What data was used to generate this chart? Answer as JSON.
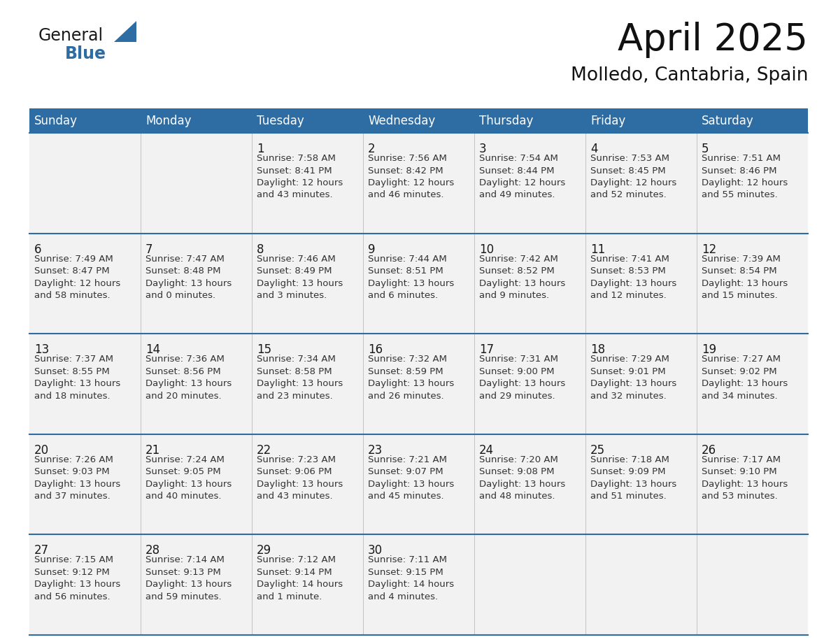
{
  "title": "April 2025",
  "subtitle": "Molledo, Cantabria, Spain",
  "header_bg_color": "#2E6DA4",
  "header_text_color": "#FFFFFF",
  "cell_bg_even": "#EFEFEF",
  "cell_bg_odd": "#F9F9F9",
  "day_number_color": "#1a1a1a",
  "cell_text_color": "#333333",
  "line_color": "#2E6DA4",
  "days_of_week": [
    "Sunday",
    "Monday",
    "Tuesday",
    "Wednesday",
    "Thursday",
    "Friday",
    "Saturday"
  ],
  "weeks": [
    [
      {
        "day": "",
        "info": ""
      },
      {
        "day": "",
        "info": ""
      },
      {
        "day": "1",
        "info": "Sunrise: 7:58 AM\nSunset: 8:41 PM\nDaylight: 12 hours\nand 43 minutes."
      },
      {
        "day": "2",
        "info": "Sunrise: 7:56 AM\nSunset: 8:42 PM\nDaylight: 12 hours\nand 46 minutes."
      },
      {
        "day": "3",
        "info": "Sunrise: 7:54 AM\nSunset: 8:44 PM\nDaylight: 12 hours\nand 49 minutes."
      },
      {
        "day": "4",
        "info": "Sunrise: 7:53 AM\nSunset: 8:45 PM\nDaylight: 12 hours\nand 52 minutes."
      },
      {
        "day": "5",
        "info": "Sunrise: 7:51 AM\nSunset: 8:46 PM\nDaylight: 12 hours\nand 55 minutes."
      }
    ],
    [
      {
        "day": "6",
        "info": "Sunrise: 7:49 AM\nSunset: 8:47 PM\nDaylight: 12 hours\nand 58 minutes."
      },
      {
        "day": "7",
        "info": "Sunrise: 7:47 AM\nSunset: 8:48 PM\nDaylight: 13 hours\nand 0 minutes."
      },
      {
        "day": "8",
        "info": "Sunrise: 7:46 AM\nSunset: 8:49 PM\nDaylight: 13 hours\nand 3 minutes."
      },
      {
        "day": "9",
        "info": "Sunrise: 7:44 AM\nSunset: 8:51 PM\nDaylight: 13 hours\nand 6 minutes."
      },
      {
        "day": "10",
        "info": "Sunrise: 7:42 AM\nSunset: 8:52 PM\nDaylight: 13 hours\nand 9 minutes."
      },
      {
        "day": "11",
        "info": "Sunrise: 7:41 AM\nSunset: 8:53 PM\nDaylight: 13 hours\nand 12 minutes."
      },
      {
        "day": "12",
        "info": "Sunrise: 7:39 AM\nSunset: 8:54 PM\nDaylight: 13 hours\nand 15 minutes."
      }
    ],
    [
      {
        "day": "13",
        "info": "Sunrise: 7:37 AM\nSunset: 8:55 PM\nDaylight: 13 hours\nand 18 minutes."
      },
      {
        "day": "14",
        "info": "Sunrise: 7:36 AM\nSunset: 8:56 PM\nDaylight: 13 hours\nand 20 minutes."
      },
      {
        "day": "15",
        "info": "Sunrise: 7:34 AM\nSunset: 8:58 PM\nDaylight: 13 hours\nand 23 minutes."
      },
      {
        "day": "16",
        "info": "Sunrise: 7:32 AM\nSunset: 8:59 PM\nDaylight: 13 hours\nand 26 minutes."
      },
      {
        "day": "17",
        "info": "Sunrise: 7:31 AM\nSunset: 9:00 PM\nDaylight: 13 hours\nand 29 minutes."
      },
      {
        "day": "18",
        "info": "Sunrise: 7:29 AM\nSunset: 9:01 PM\nDaylight: 13 hours\nand 32 minutes."
      },
      {
        "day": "19",
        "info": "Sunrise: 7:27 AM\nSunset: 9:02 PM\nDaylight: 13 hours\nand 34 minutes."
      }
    ],
    [
      {
        "day": "20",
        "info": "Sunrise: 7:26 AM\nSunset: 9:03 PM\nDaylight: 13 hours\nand 37 minutes."
      },
      {
        "day": "21",
        "info": "Sunrise: 7:24 AM\nSunset: 9:05 PM\nDaylight: 13 hours\nand 40 minutes."
      },
      {
        "day": "22",
        "info": "Sunrise: 7:23 AM\nSunset: 9:06 PM\nDaylight: 13 hours\nand 43 minutes."
      },
      {
        "day": "23",
        "info": "Sunrise: 7:21 AM\nSunset: 9:07 PM\nDaylight: 13 hours\nand 45 minutes."
      },
      {
        "day": "24",
        "info": "Sunrise: 7:20 AM\nSunset: 9:08 PM\nDaylight: 13 hours\nand 48 minutes."
      },
      {
        "day": "25",
        "info": "Sunrise: 7:18 AM\nSunset: 9:09 PM\nDaylight: 13 hours\nand 51 minutes."
      },
      {
        "day": "26",
        "info": "Sunrise: 7:17 AM\nSunset: 9:10 PM\nDaylight: 13 hours\nand 53 minutes."
      }
    ],
    [
      {
        "day": "27",
        "info": "Sunrise: 7:15 AM\nSunset: 9:12 PM\nDaylight: 13 hours\nand 56 minutes."
      },
      {
        "day": "28",
        "info": "Sunrise: 7:14 AM\nSunset: 9:13 PM\nDaylight: 13 hours\nand 59 minutes."
      },
      {
        "day": "29",
        "info": "Sunrise: 7:12 AM\nSunset: 9:14 PM\nDaylight: 14 hours\nand 1 minute."
      },
      {
        "day": "30",
        "info": "Sunrise: 7:11 AM\nSunset: 9:15 PM\nDaylight: 14 hours\nand 4 minutes."
      },
      {
        "day": "",
        "info": ""
      },
      {
        "day": "",
        "info": ""
      },
      {
        "day": "",
        "info": ""
      }
    ]
  ],
  "logo_general_color": "#1a1a1a",
  "logo_blue_color": "#2E6DA4",
  "title_fontsize": 38,
  "subtitle_fontsize": 19,
  "header_fontsize": 12,
  "day_number_fontsize": 12,
  "cell_text_fontsize": 9.5
}
